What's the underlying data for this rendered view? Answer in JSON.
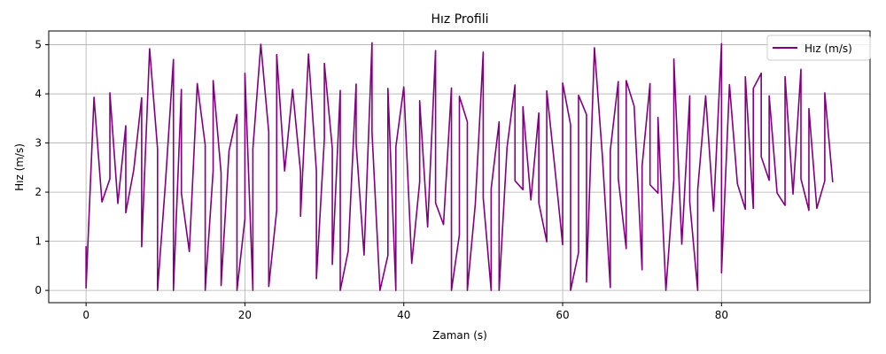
{
  "chart_data": {
    "type": "line",
    "title": "Hız Profili",
    "xlabel": "Zaman (s)",
    "ylabel": "Hız (m/s)",
    "xlim": [
      -4.7,
      98.7
    ],
    "ylim": [
      -0.25,
      5.28
    ],
    "xticks": [
      0,
      20,
      40,
      60,
      80
    ],
    "yticks": [
      0,
      1,
      2,
      3,
      4,
      5
    ],
    "grid": true,
    "legend": "top-right",
    "series": [
      {
        "name": "Hız (m/s)",
        "color": "#800080",
        "points": [
          [
            0,
            0.9
          ],
          [
            0,
            0.05
          ],
          [
            1,
            3.93
          ],
          [
            2,
            1.8
          ],
          [
            3,
            2.27
          ],
          [
            3,
            4.02
          ],
          [
            4,
            1.77
          ],
          [
            5,
            3.35
          ],
          [
            5,
            1.58
          ],
          [
            6,
            2.45
          ],
          [
            7,
            3.92
          ],
          [
            7,
            0.89
          ],
          [
            8,
            4.92
          ],
          [
            9,
            2.88
          ],
          [
            9,
            0.0
          ],
          [
            10,
            2.2
          ],
          [
            11,
            4.7
          ],
          [
            11,
            0.0
          ],
          [
            12,
            4.09
          ],
          [
            12,
            1.98
          ],
          [
            13,
            0.79
          ],
          [
            14,
            4.21
          ],
          [
            15,
            2.96
          ],
          [
            15,
            0.0
          ],
          [
            16,
            2.44
          ],
          [
            16,
            4.27
          ],
          [
            17,
            2.39
          ],
          [
            17,
            0.1
          ],
          [
            18,
            2.84
          ],
          [
            19,
            3.58
          ],
          [
            19,
            0.0
          ],
          [
            20,
            1.46
          ],
          [
            20,
            4.42
          ],
          [
            21,
            0.0
          ],
          [
            21,
            2.88
          ],
          [
            22,
            5.01
          ],
          [
            23,
            3.22
          ],
          [
            23,
            0.08
          ],
          [
            24,
            1.63
          ],
          [
            24,
            4.8
          ],
          [
            25,
            2.43
          ],
          [
            26,
            4.09
          ],
          [
            27,
            2.42
          ],
          [
            27,
            1.51
          ],
          [
            28,
            4.81
          ],
          [
            29,
            2.42
          ],
          [
            29,
            0.24
          ],
          [
            30,
            3.08
          ],
          [
            30,
            4.62
          ],
          [
            31,
            2.89
          ],
          [
            31,
            0.53
          ],
          [
            32,
            4.07
          ],
          [
            32,
            0.0
          ],
          [
            33,
            0.8
          ],
          [
            34,
            4.2
          ],
          [
            34,
            2.99
          ],
          [
            35,
            0.72
          ],
          [
            36,
            5.04
          ],
          [
            36,
            3.21
          ],
          [
            37,
            0.0
          ],
          [
            38,
            0.71
          ],
          [
            38,
            4.11
          ],
          [
            39,
            0.0
          ],
          [
            39,
            2.92
          ],
          [
            40,
            4.14
          ],
          [
            41,
            0.55
          ],
          [
            42,
            2.21
          ],
          [
            42,
            3.86
          ],
          [
            43,
            1.29
          ],
          [
            44,
            4.88
          ],
          [
            44,
            1.78
          ],
          [
            45,
            1.34
          ],
          [
            46,
            4.12
          ],
          [
            46,
            0.0
          ],
          [
            47,
            1.13
          ],
          [
            47,
            3.95
          ],
          [
            48,
            3.43
          ],
          [
            48,
            0.0
          ],
          [
            49,
            1.75
          ],
          [
            50,
            4.85
          ],
          [
            50,
            1.88
          ],
          [
            51,
            0.0
          ],
          [
            51,
            2.07
          ],
          [
            52,
            3.43
          ],
          [
            52,
            0.0
          ],
          [
            53,
            2.91
          ],
          [
            54,
            4.18
          ],
          [
            54,
            2.23
          ],
          [
            55,
            2.05
          ],
          [
            55,
            3.74
          ],
          [
            56,
            1.84
          ],
          [
            57,
            3.61
          ],
          [
            57,
            1.78
          ],
          [
            58,
            0.99
          ],
          [
            58,
            4.06
          ],
          [
            59,
            2.52
          ],
          [
            60,
            0.93
          ],
          [
            60,
            4.22
          ],
          [
            61,
            3.37
          ],
          [
            61,
            0.0
          ],
          [
            62,
            0.77
          ],
          [
            62,
            3.97
          ],
          [
            63,
            3.58
          ],
          [
            63,
            0.17
          ],
          [
            64,
            4.94
          ],
          [
            65,
            2.74
          ],
          [
            66,
            0.06
          ],
          [
            66,
            2.85
          ],
          [
            67,
            4.25
          ],
          [
            67,
            2.28
          ],
          [
            68,
            0.85
          ],
          [
            68,
            4.27
          ],
          [
            69,
            3.75
          ],
          [
            70,
            0.42
          ],
          [
            70,
            2.53
          ],
          [
            71,
            4.21
          ],
          [
            71,
            2.15
          ],
          [
            72,
            1.98
          ],
          [
            72,
            3.52
          ],
          [
            73,
            0.0
          ],
          [
            74,
            2.25
          ],
          [
            74,
            4.71
          ],
          [
            75,
            0.94
          ],
          [
            76,
            3.96
          ],
          [
            76,
            1.8
          ],
          [
            77,
            0.0
          ],
          [
            77,
            2.04
          ],
          [
            78,
            3.96
          ],
          [
            79,
            1.61
          ],
          [
            80,
            5.02
          ],
          [
            80,
            0.36
          ],
          [
            81,
            4.19
          ],
          [
            82,
            2.17
          ],
          [
            83,
            1.65
          ],
          [
            83,
            4.35
          ],
          [
            84,
            1.67
          ],
          [
            84,
            4.11
          ],
          [
            85,
            4.42
          ],
          [
            85,
            2.72
          ],
          [
            86,
            2.24
          ],
          [
            86,
            3.96
          ],
          [
            87,
            1.98
          ],
          [
            88,
            1.73
          ],
          [
            88,
            4.35
          ],
          [
            89,
            1.96
          ],
          [
            90,
            4.5
          ],
          [
            90,
            2.27
          ],
          [
            91,
            1.63
          ],
          [
            91,
            3.7
          ],
          [
            92,
            1.67
          ],
          [
            93,
            2.23
          ],
          [
            93,
            4.02
          ],
          [
            94,
            2.2
          ]
        ]
      }
    ]
  }
}
